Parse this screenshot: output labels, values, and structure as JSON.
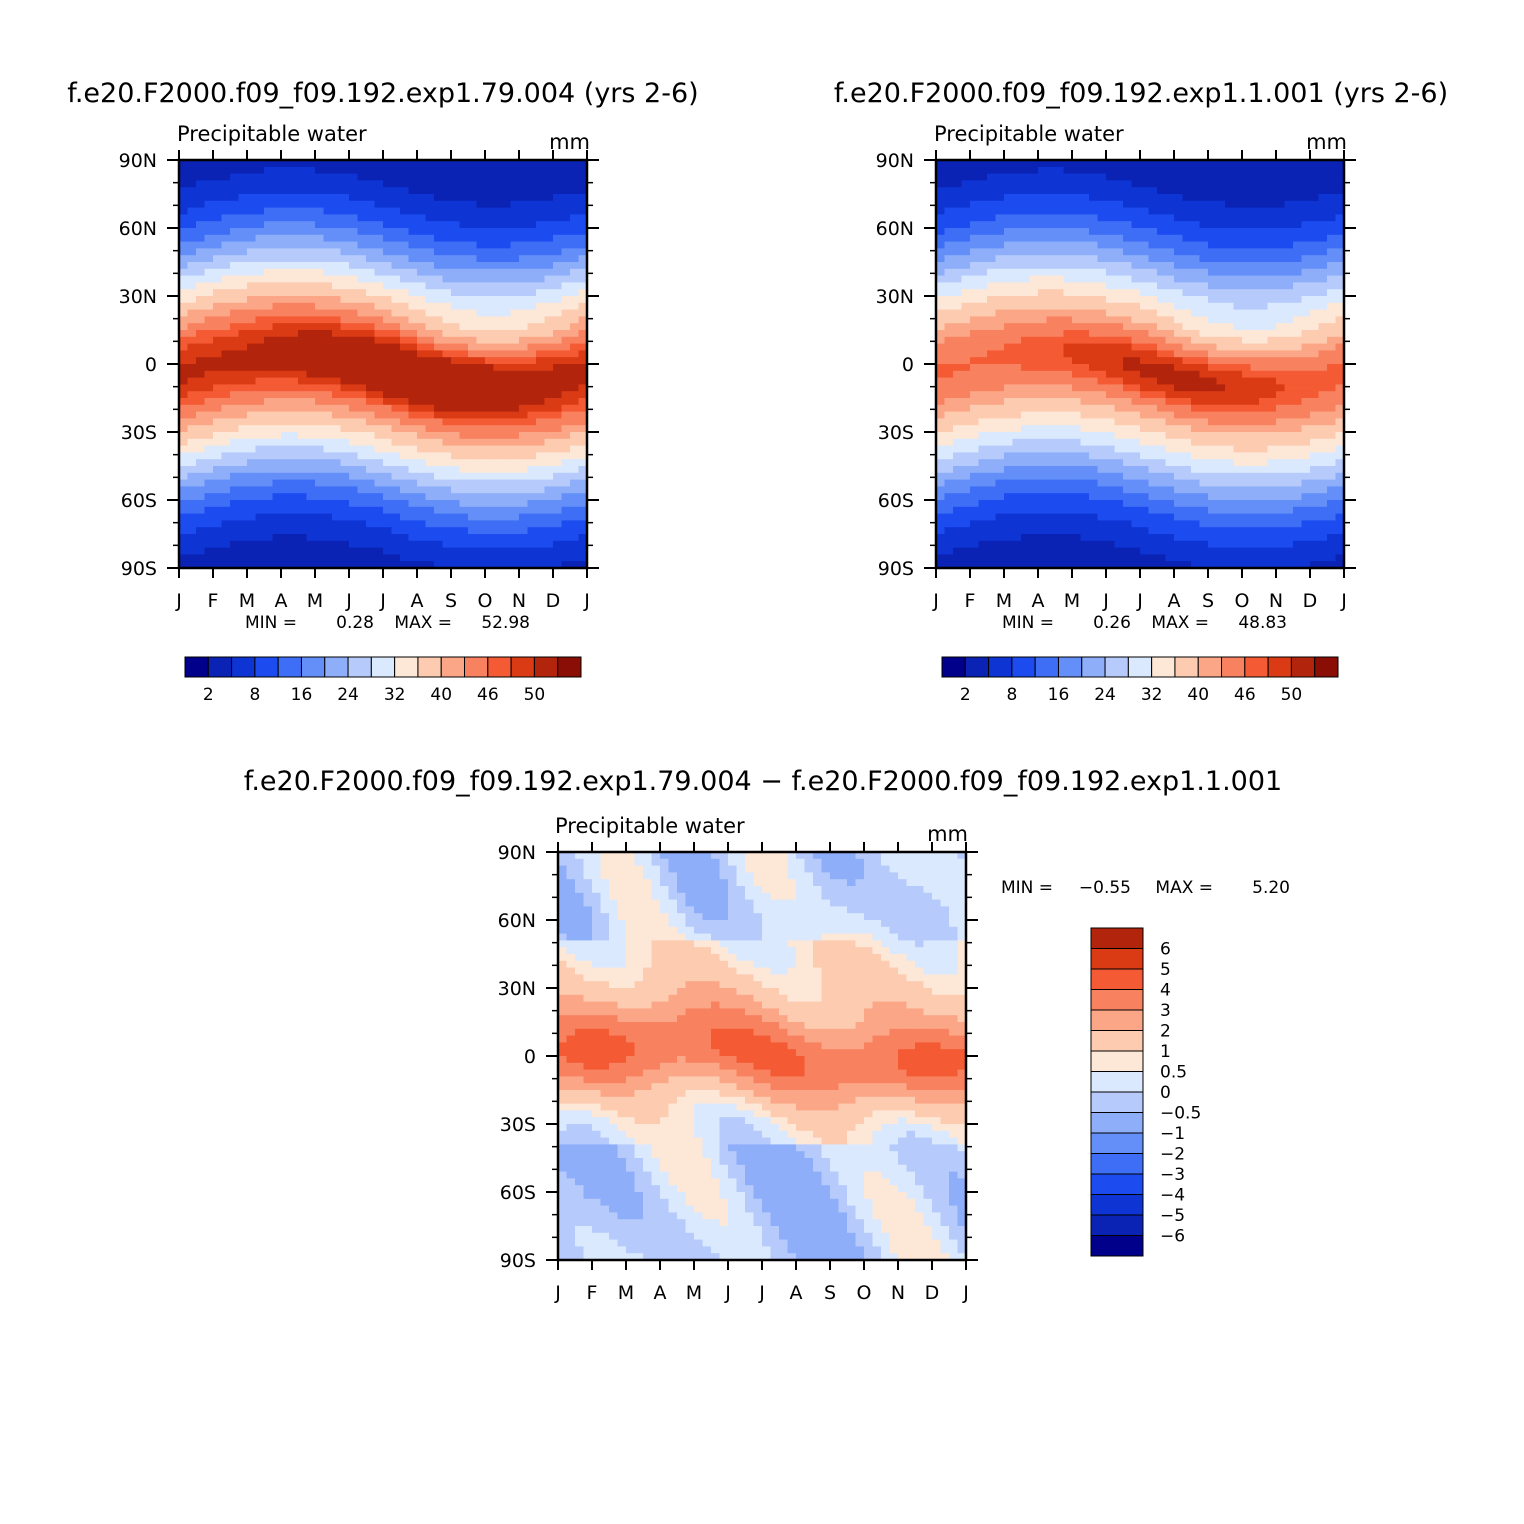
{
  "chart_data": [
    {
      "type": "heatmap",
      "title": "f.e20.F2000.f09_f09.192.exp1.79.004 (yrs 2-6)",
      "subtitle_left": "Precipitable water",
      "subtitle_right": "mm",
      "x_tick_labels": [
        "J",
        "F",
        "M",
        "A",
        "M",
        "J",
        "J",
        "A",
        "S",
        "O",
        "N",
        "D",
        "J"
      ],
      "y_tick_labels": [
        "90N",
        "60N",
        "30N",
        "0",
        "30S",
        "60S",
        "90S"
      ],
      "ylim": [
        -90,
        90
      ],
      "min_label": "MIN =",
      "min_value": "0.28",
      "max_label": "MAX =",
      "max_value": "52.98",
      "levels": [
        2,
        5,
        8,
        12,
        16,
        20,
        24,
        28,
        32,
        36,
        40,
        43,
        46,
        48,
        50
      ],
      "level_labels": [
        "2",
        "8",
        "16",
        "24",
        "32",
        "40",
        "46",
        "50"
      ],
      "colorbar": "horizontal",
      "field": {
        "eq_shift_deg": 8,
        "peak": 52.98,
        "low": 0.28
      }
    },
    {
      "type": "heatmap",
      "title": "f.e20.F2000.f09_f09.192.exp1.1.001 (yrs 2-6)",
      "subtitle_left": "Precipitable water",
      "subtitle_right": "mm",
      "x_tick_labels": [
        "J",
        "F",
        "M",
        "A",
        "M",
        "J",
        "J",
        "A",
        "S",
        "O",
        "N",
        "D",
        "J"
      ],
      "y_tick_labels": [
        "90N",
        "60N",
        "30N",
        "0",
        "30S",
        "60S",
        "90S"
      ],
      "ylim": [
        -90,
        90
      ],
      "min_label": "MIN =",
      "min_value": "0.26",
      "max_label": "MAX =",
      "max_value": "48.83",
      "levels": [
        2,
        5,
        8,
        12,
        16,
        20,
        24,
        28,
        32,
        36,
        40,
        43,
        46,
        48,
        50
      ],
      "level_labels": [
        "2",
        "8",
        "16",
        "24",
        "32",
        "40",
        "46",
        "50"
      ],
      "colorbar": "horizontal",
      "field": {
        "eq_shift_deg": 8,
        "peak": 48.83,
        "low": 0.26
      }
    },
    {
      "type": "heatmap",
      "title": "f.e20.F2000.f09_f09.192.exp1.79.004 − f.e20.F2000.f09_f09.192.exp1.1.001",
      "subtitle_left": "Precipitable water",
      "subtitle_right": "mm",
      "x_tick_labels": [
        "J",
        "F",
        "M",
        "A",
        "M",
        "J",
        "J",
        "A",
        "S",
        "O",
        "N",
        "D",
        "J"
      ],
      "y_tick_labels": [
        "90N",
        "60N",
        "30N",
        "0",
        "30S",
        "60S",
        "90S"
      ],
      "ylim": [
        -90,
        90
      ],
      "min_label": "MIN =",
      "min_value": "−0.55",
      "max_label": "MAX =",
      "max_value": "5.20",
      "levels": [
        -6,
        -5,
        -4,
        -3,
        -2,
        -1,
        -0.5,
        0,
        0.5,
        1,
        2,
        3,
        4,
        5,
        6
      ],
      "level_labels": [
        "6",
        "5",
        "4",
        "3",
        "2",
        "1",
        "0.5",
        "0",
        "−0.5",
        "−1",
        "−2",
        "−3",
        "−4",
        "−5",
        "−6"
      ],
      "colorbar": "vertical",
      "field": {
        "eq_shift_deg": 5,
        "peak": 5.2,
        "low": -0.55
      }
    }
  ],
  "palette": {
    "two_panel": [
      "#00008a",
      "#0a23b4",
      "#0e34d4",
      "#1c4cf0",
      "#3e6ef6",
      "#648ff8",
      "#8eaefa",
      "#b6cbfc",
      "#dae9fd",
      "#fde8d8",
      "#fccbb0",
      "#fba787",
      "#f8815f",
      "#f45a33",
      "#da3a14",
      "#b3240c",
      "#8a0e05"
    ],
    "diff": [
      "#00008a",
      "#0a23b4",
      "#0e34d4",
      "#1c4cf0",
      "#3e6ef6",
      "#648ff8",
      "#8eaefa",
      "#b6cbfc",
      "#dae9fd",
      "#fde8d8",
      "#fccbb0",
      "#fba787",
      "#f8815f",
      "#f45a33",
      "#da3a14",
      "#b3240c"
    ]
  }
}
